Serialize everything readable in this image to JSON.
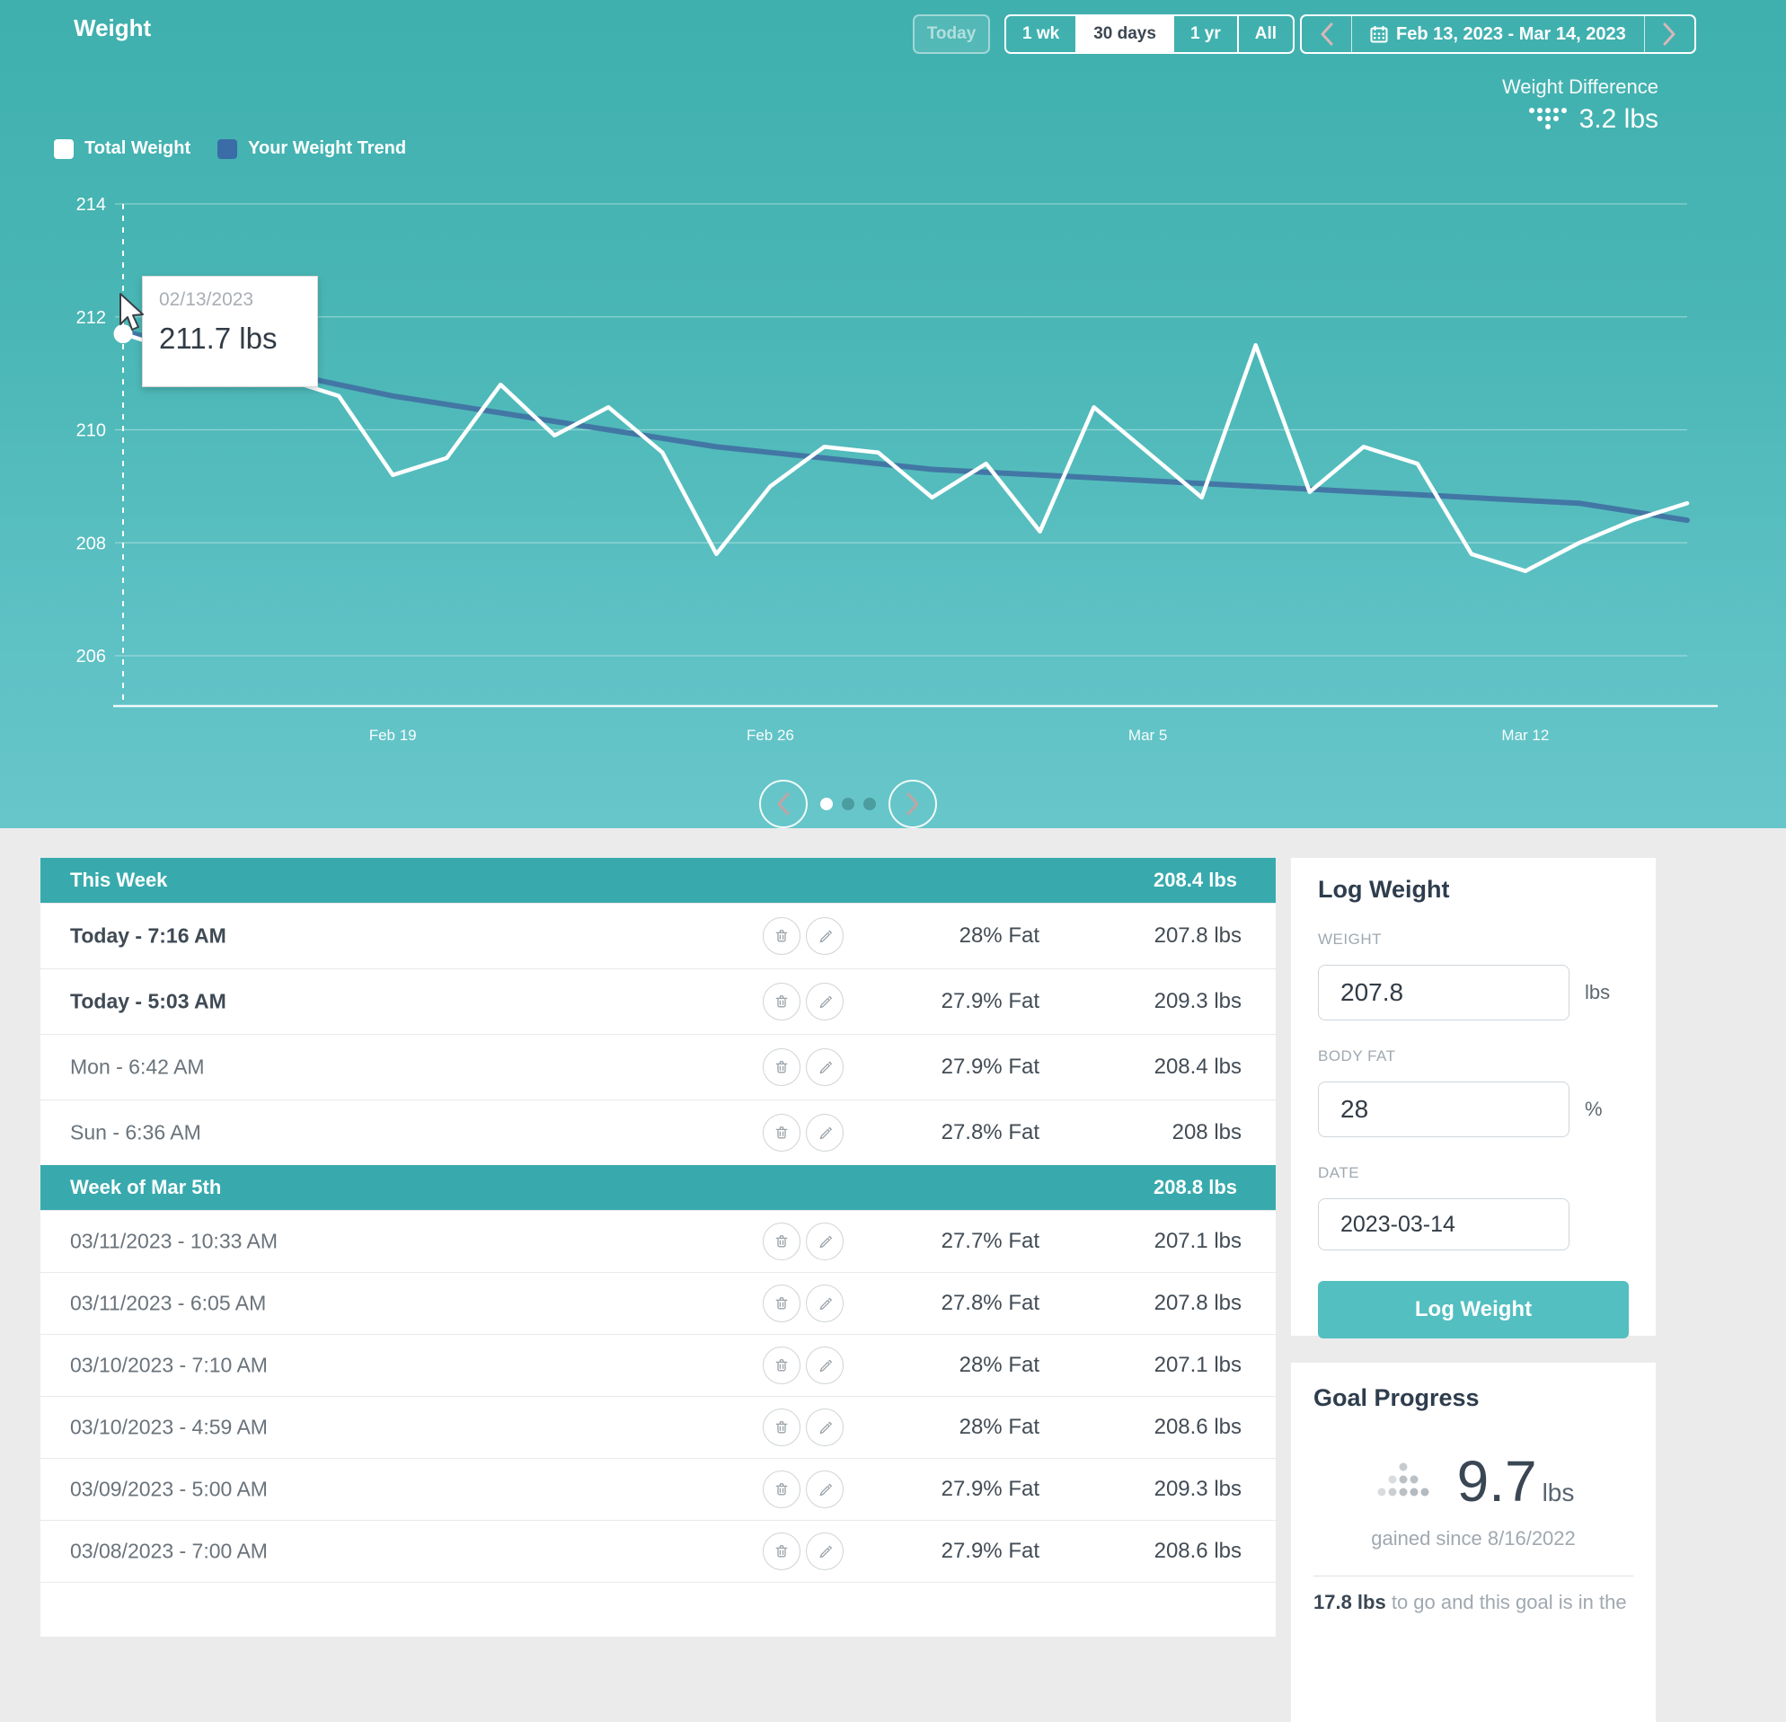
{
  "header": {
    "title": "Weight",
    "today_button": "Today",
    "range_buttons": [
      {
        "label": "1 wk",
        "selected": false
      },
      {
        "label": "30 days",
        "selected": true
      },
      {
        "label": "1 yr",
        "selected": false
      },
      {
        "label": "All",
        "selected": false
      }
    ],
    "date_range": "Feb 13, 2023 - Mar 14, 2023",
    "weight_difference": {
      "label": "Weight Difference",
      "value": "3.2 lbs"
    }
  },
  "legend": [
    {
      "label": "Total Weight",
      "color": "#ffffff"
    },
    {
      "label": "Your Weight Trend",
      "color": "#3a6ca8"
    }
  ],
  "chart_data": {
    "type": "line",
    "title": "Weight, 30 days",
    "x_start": "2023-02-13",
    "x_end": "2023-03-14",
    "x_tick_labels": [
      "Feb 19",
      "Feb 26",
      "Mar 5",
      "Mar 12"
    ],
    "y_ticks": [
      214,
      212,
      210,
      208,
      206
    ],
    "ylim": [
      205.2,
      214.8
    ],
    "grid": true,
    "series": [
      {
        "name": "Your Weight Trend",
        "color": "#4277a5",
        "width": 6,
        "values": [
          211.75,
          211.5,
          211.25,
          211.0,
          210.8,
          210.6,
          210.45,
          210.3,
          210.15,
          210.0,
          209.85,
          209.7,
          209.6,
          209.5,
          209.4,
          209.3,
          209.25,
          209.2,
          209.15,
          209.1,
          209.05,
          209.0,
          208.95,
          208.9,
          208.85,
          208.8,
          208.75,
          208.7,
          208.55,
          208.4
        ]
      },
      {
        "name": "Total Weight",
        "color": "#ffffff",
        "width": 4.5,
        "values": [
          211.7,
          211.4,
          211.1,
          210.9,
          210.6,
          209.2,
          209.5,
          210.8,
          209.9,
          210.4,
          209.6,
          207.8,
          209.0,
          209.7,
          209.6,
          208.8,
          209.4,
          208.2,
          210.4,
          209.6,
          208.8,
          211.5,
          208.9,
          209.7,
          209.4,
          207.8,
          207.5,
          208.0,
          208.4,
          208.7
        ]
      }
    ],
    "tooltip": {
      "date": "02/13/2023",
      "value": "211.7 lbs",
      "point_index": 0,
      "point_value": 211.7
    },
    "legend_position": "top-left"
  },
  "pagination": {
    "dot_count": 3,
    "active_index": 0
  },
  "tables": [
    {
      "title": "This Week",
      "summary": "208.4 lbs",
      "rows": [
        {
          "date": "Today - 7:16 AM",
          "bold": true,
          "fat": "28% Fat",
          "weight": "207.8 lbs"
        },
        {
          "date": "Today - 5:03 AM",
          "bold": true,
          "fat": "27.9% Fat",
          "weight": "209.3 lbs"
        },
        {
          "date": "Mon - 6:42 AM",
          "bold": false,
          "fat": "27.9% Fat",
          "weight": "208.4 lbs"
        },
        {
          "date": "Sun - 6:36 AM",
          "bold": false,
          "fat": "27.8% Fat",
          "weight": "208 lbs"
        }
      ]
    },
    {
      "title": "Week of Mar 5th",
      "summary": "208.8 lbs",
      "rows": [
        {
          "date": "03/11/2023 - 10:33 AM",
          "bold": false,
          "fat": "27.7% Fat",
          "weight": "207.1 lbs"
        },
        {
          "date": "03/11/2023 - 6:05 AM",
          "bold": false,
          "fat": "27.8% Fat",
          "weight": "207.8 lbs"
        },
        {
          "date": "03/10/2023 - 7:10 AM",
          "bold": false,
          "fat": "28% Fat",
          "weight": "207.1 lbs"
        },
        {
          "date": "03/10/2023 - 4:59 AM",
          "bold": false,
          "fat": "28% Fat",
          "weight": "208.6 lbs"
        },
        {
          "date": "03/09/2023 - 5:00 AM",
          "bold": false,
          "fat": "27.9% Fat",
          "weight": "209.3 lbs"
        },
        {
          "date": "03/08/2023 - 7:00 AM",
          "bold": false,
          "fat": "27.9% Fat",
          "weight": "208.6 lbs"
        }
      ]
    }
  ],
  "log_weight": {
    "title": "Log Weight",
    "weight_label": "WEIGHT",
    "weight_value": "207.8",
    "weight_unit": "lbs",
    "bodyfat_label": "BODY FAT",
    "bodyfat_value": "28",
    "bodyfat_unit": "%",
    "date_label": "DATE",
    "date_value": "2023-03-14",
    "button_label": "Log Weight"
  },
  "goal": {
    "title": "Goal Progress",
    "value": "9.7",
    "unit": "lbs",
    "subtitle": "gained since 8/16/2022",
    "footer_strong": "17.8 lbs",
    "footer_rest": " to go and this goal is in the"
  }
}
